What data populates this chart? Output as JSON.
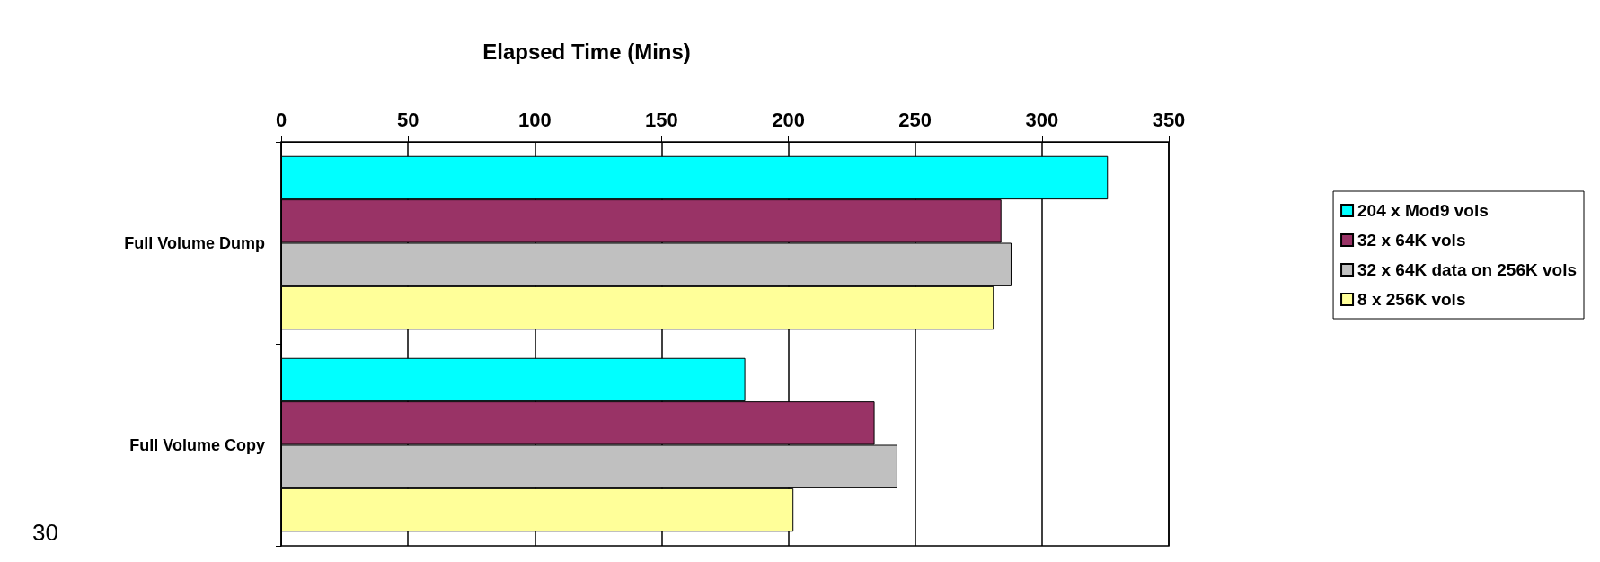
{
  "chart_data": {
    "type": "bar",
    "orientation": "horizontal",
    "title": "Elapsed Time (Mins)",
    "categories": [
      "Full Volume Dump",
      "Full Volume Copy"
    ],
    "series": [
      {
        "name": "204 x Mod9 vols",
        "color": "#00ffff",
        "values": [
          326,
          183
        ]
      },
      {
        "name": "32 x 64K vols",
        "color": "#993366",
        "values": [
          284,
          234
        ]
      },
      {
        "name": "32 x 64K data on 256K vols",
        "color": "#c0c0c0",
        "values": [
          288,
          243
        ]
      },
      {
        "name": "8 x 256K vols",
        "color": "#ffff99",
        "values": [
          281,
          202
        ]
      }
    ],
    "xlim": [
      0,
      350
    ],
    "xticks": [
      0,
      50,
      100,
      150,
      200,
      250,
      300,
      350
    ],
    "grid": "x",
    "legend": "right",
    "annotations": [
      "30"
    ]
  }
}
